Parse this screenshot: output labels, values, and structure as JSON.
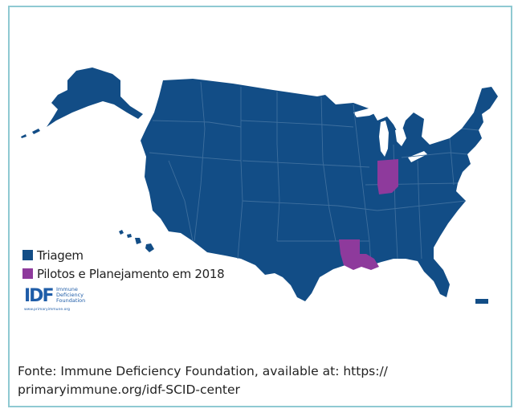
{
  "colors": {
    "screening": "#124d86",
    "pilots": "#8e3a9c",
    "border": "#8fc9d2",
    "state_line": "#3e6f9e"
  },
  "legend": {
    "items": [
      {
        "label": "Triagem",
        "color": "#124d86"
      },
      {
        "label": "Pilotos e Planejamento em 2018",
        "color": "#8e3a9c"
      }
    ]
  },
  "logo": {
    "mark": "IDF",
    "line1": "Immune",
    "line2": "Deficiency",
    "line3": "Foundation",
    "url": "www.primaryimmune.org"
  },
  "caption": {
    "line1": "Fonte: Immune Deficiency Foundation, available at: https://",
    "line2": "primaryimmune.org/idf-SCID-center"
  },
  "highlighted_states": [
    "Indiana",
    "Louisiana"
  ]
}
